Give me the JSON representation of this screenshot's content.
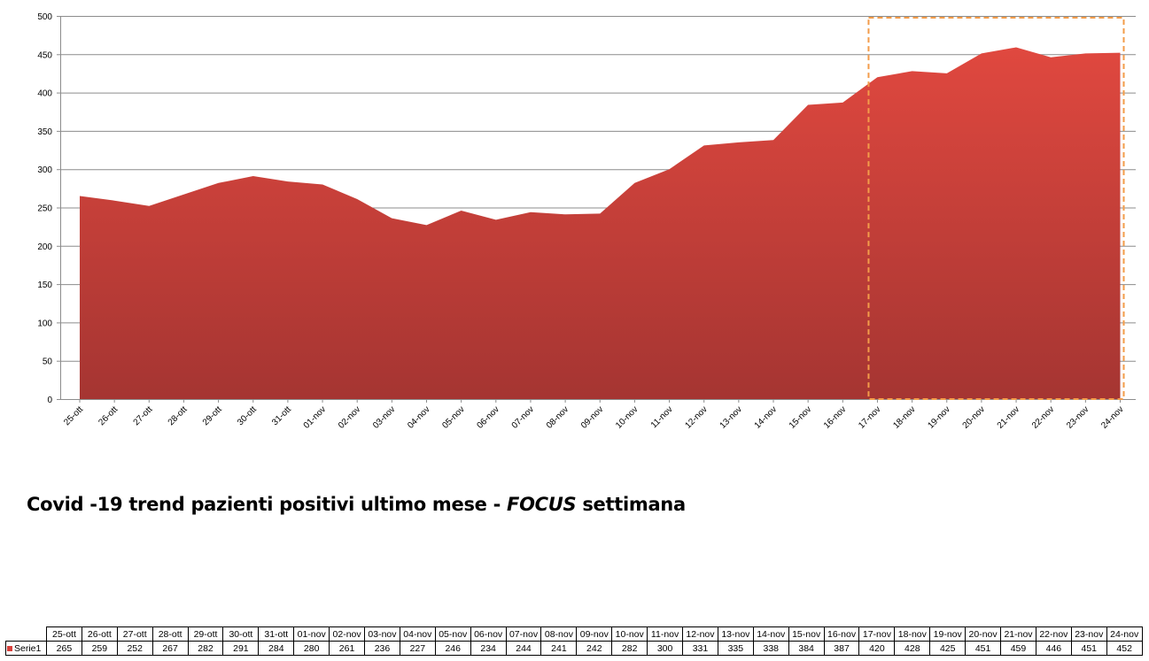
{
  "chart_data": {
    "type": "area",
    "title": "Covid -19 trend pazienti positivi ultimo mese - ",
    "title_emphasis": "FOCUS",
    "title_suffix": " settimana",
    "categories": [
      "25-ott",
      "26-ott",
      "27-ott",
      "28-ott",
      "29-ott",
      "30-ott",
      "31-ott",
      "01-nov",
      "02-nov",
      "03-nov",
      "04-nov",
      "05-nov",
      "06-nov",
      "07-nov",
      "08-nov",
      "09-nov",
      "10-nov",
      "11-nov",
      "12-nov",
      "13-nov",
      "14-nov",
      "15-nov",
      "16-nov",
      "17-nov",
      "18-nov",
      "19-nov",
      "20-nov",
      "21-nov",
      "22-nov",
      "23-nov",
      "24-nov"
    ],
    "series": [
      {
        "name": "Serie1",
        "values": [
          265,
          259,
          252,
          267,
          282,
          291,
          284,
          280,
          261,
          236,
          227,
          246,
          234,
          244,
          241,
          242,
          282,
          300,
          331,
          335,
          338,
          384,
          387,
          420,
          428,
          425,
          451,
          459,
          446,
          451,
          452
        ],
        "color": "#d8403b"
      }
    ],
    "y_ticks": [
      0,
      50,
      100,
      150,
      200,
      250,
      300,
      350,
      400,
      450,
      500
    ],
    "ylim": [
      0,
      500
    ],
    "grid": true,
    "legend": "data-table",
    "focus_range": [
      "17-nov",
      "24-nov"
    ],
    "focus_color": "#f39c4a",
    "grid_color": "#8c8c8c"
  }
}
